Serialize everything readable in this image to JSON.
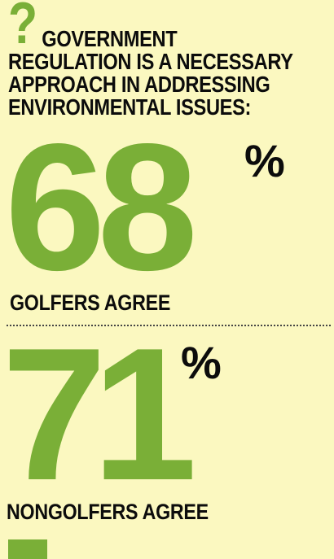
{
  "colors": {
    "background": "#fbf8c0",
    "accent": "#7aaf37",
    "text": "#0c0c0c"
  },
  "question_mark": "?",
  "headline": {
    "line1": "GOVERNMENT",
    "line2": "REGULATION IS A NECESSARY",
    "line3": "APPROACH IN ADDRESSING",
    "line4": "ENVIRONMENTAL ISSUES:"
  },
  "stats": [
    {
      "value": "68",
      "unit": "%",
      "label": "GOLFERS AGREE"
    },
    {
      "value": "71",
      "unit": "%",
      "label": "NONGOLFERS AGREE"
    }
  ]
}
